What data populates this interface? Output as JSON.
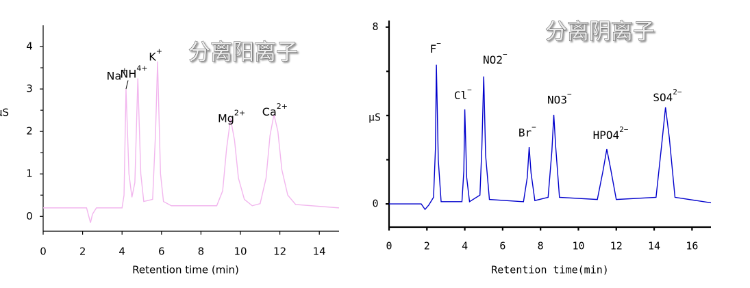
{
  "chart_data": [
    {
      "type": "line",
      "title": "分离阳离子",
      "xlabel": "Retention time (min)",
      "ylabel": "µS",
      "color": "#f2b6ee",
      "xlim": [
        0,
        15
      ],
      "xticks": [
        0,
        2,
        4,
        6,
        8,
        10,
        12,
        14
      ],
      "ylim": [
        -0.35,
        4.5
      ],
      "yticks": [
        0,
        1,
        2,
        3,
        4
      ],
      "yminor": [
        0.5,
        1.5,
        2.5,
        3.5
      ],
      "x": [
        0,
        2.2,
        2.4,
        2.5,
        2.7,
        4.0,
        4.1,
        4.2,
        4.35,
        4.5,
        4.65,
        4.8,
        4.95,
        5.1,
        5.55,
        5.7,
        5.8,
        5.95,
        6.1,
        6.5,
        8.8,
        9.1,
        9.3,
        9.5,
        9.7,
        9.9,
        10.2,
        10.6,
        11.0,
        11.3,
        11.5,
        11.7,
        11.9,
        12.1,
        12.4,
        12.8,
        15
      ],
      "values": [
        0.2,
        0.2,
        -0.15,
        0.05,
        0.2,
        0.2,
        0.5,
        3.0,
        1.0,
        0.45,
        0.8,
        3.25,
        1.0,
        0.35,
        0.4,
        2.0,
        3.65,
        1.0,
        0.35,
        0.25,
        0.25,
        0.6,
        1.6,
        2.3,
        1.8,
        0.9,
        0.4,
        0.25,
        0.3,
        0.9,
        1.9,
        2.4,
        2.0,
        1.1,
        0.5,
        0.28,
        0.2
      ],
      "annotations": [
        {
          "text": "Na",
          "sup": "+",
          "x": 3.75,
          "y": 3.3,
          "point": [
            4.2,
            3.0
          ]
        },
        {
          "text": "NH",
          "sup": "4+",
          "x": 4.6,
          "y": 3.35
        },
        {
          "text": "K",
          "sup": "+",
          "x": 5.7,
          "y": 3.75
        },
        {
          "text": "Mg",
          "sup": "2+",
          "x": 9.55,
          "y": 2.3
        },
        {
          "text": "Ca",
          "sup": "2+",
          "x": 11.75,
          "y": 2.45
        }
      ]
    },
    {
      "type": "line",
      "title": "分离阴离子",
      "xlabel": "Retention time(min)",
      "ylabel": "μS",
      "color": "#0000cc",
      "xlim": [
        0,
        17
      ],
      "xticks": [
        0,
        2,
        4,
        6,
        8,
        10,
        12,
        14,
        16
      ],
      "ylim": [
        -1.05,
        8.3
      ],
      "yticks": [
        0,
        8
      ],
      "yminor": [
        2,
        4,
        6
      ],
      "x": [
        0,
        1.7,
        1.9,
        2.1,
        2.35,
        2.45,
        2.5,
        2.6,
        2.75,
        3.85,
        3.95,
        4.0,
        4.1,
        4.25,
        4.8,
        4.9,
        5.0,
        5.1,
        5.3,
        7.1,
        7.3,
        7.4,
        7.5,
        7.7,
        8.4,
        8.6,
        8.7,
        8.8,
        9.0,
        11.0,
        11.3,
        11.5,
        11.7,
        12.0,
        14.1,
        14.4,
        14.6,
        14.8,
        15.1,
        17
      ],
      "values": [
        0,
        0,
        -0.25,
        -0.05,
        0.3,
        2.5,
        6.3,
        2.0,
        0.1,
        0.1,
        1.5,
        4.28,
        1.2,
        0.1,
        0.4,
        2.5,
        5.77,
        2.2,
        0.2,
        0.1,
        1.2,
        2.57,
        1.4,
        0.15,
        0.3,
        2.4,
        4.03,
        2.6,
        0.3,
        0.2,
        1.5,
        2.48,
        1.6,
        0.2,
        0.3,
        2.7,
        4.37,
        3.0,
        0.3,
        0.05
      ],
      "annotations": [
        {
          "text": "F",
          "sup": "−",
          "x": 2.45,
          "y": 7.0
        },
        {
          "text": "Cl",
          "sup": "−",
          "x": 3.9,
          "y": 4.9
        },
        {
          "text": "NO2",
          "sup": "−",
          "x": 5.6,
          "y": 6.5
        },
        {
          "text": "Br",
          "sup": "−",
          "x": 7.3,
          "y": 3.2
        },
        {
          "text": "NO3",
          "sup": "−",
          "x": 9.0,
          "y": 4.7
        },
        {
          "text": "HPO4",
          "sup": "2−",
          "x": 11.7,
          "y": 3.1
        },
        {
          "text": "SO4",
          "sup": "2−",
          "x": 14.7,
          "y": 4.8
        }
      ]
    }
  ]
}
